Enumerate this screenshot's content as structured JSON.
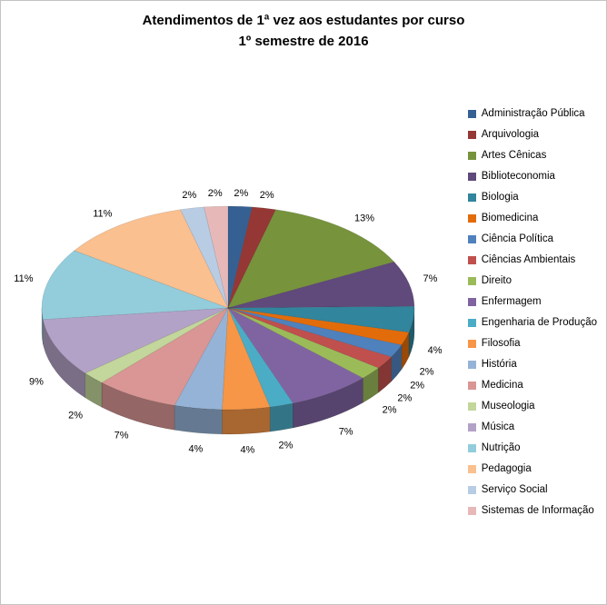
{
  "chart_data": {
    "type": "pie",
    "title": "Atendimentos de 1ª vez aos estudantes por curso",
    "subtitle": "1º semestre de 2016",
    "legend_position": "right",
    "label_format": "percent-outside",
    "style": "3d-pie",
    "unit": "%",
    "series": [
      {
        "name": "Administração Pública",
        "value": 2,
        "color": "#366092"
      },
      {
        "name": "Arquivologia",
        "value": 2,
        "color": "#953735"
      },
      {
        "name": "Artes Cênicas",
        "value": 13,
        "color": "#77933C"
      },
      {
        "name": "Biblioteconomia",
        "value": 7,
        "color": "#60497B"
      },
      {
        "name": "Biologia",
        "value": 4,
        "color": "#31859C"
      },
      {
        "name": "Biomedicina",
        "value": 2,
        "color": "#E36C0A"
      },
      {
        "name": "Ciência Política",
        "value": 2,
        "color": "#4F81BD"
      },
      {
        "name": "Ciências Ambientais",
        "value": 2,
        "color": "#C0504D"
      },
      {
        "name": "Direito",
        "value": 2,
        "color": "#9BBB59"
      },
      {
        "name": "Enfermagem",
        "value": 7,
        "color": "#8064A2"
      },
      {
        "name": "Engenharia de Produção",
        "value": 2,
        "color": "#4BACC6"
      },
      {
        "name": "Filosofia",
        "value": 4,
        "color": "#F79646"
      },
      {
        "name": "História",
        "value": 4,
        "color": "#95B3D7"
      },
      {
        "name": "Medicina",
        "value": 7,
        "color": "#D99694"
      },
      {
        "name": "Museologia",
        "value": 2,
        "color": "#C3D69B"
      },
      {
        "name": "Música",
        "value": 9,
        "color": "#B3A2C7"
      },
      {
        "name": "Nutrição",
        "value": 11,
        "color": "#93CDDC"
      },
      {
        "name": "Pedagogia",
        "value": 11,
        "color": "#FAC090"
      },
      {
        "name": "Serviço Social",
        "value": 2,
        "color": "#B8CCE4"
      },
      {
        "name": "Sistemas de Informação",
        "value": 2,
        "color": "#E6B9B8"
      }
    ]
  }
}
